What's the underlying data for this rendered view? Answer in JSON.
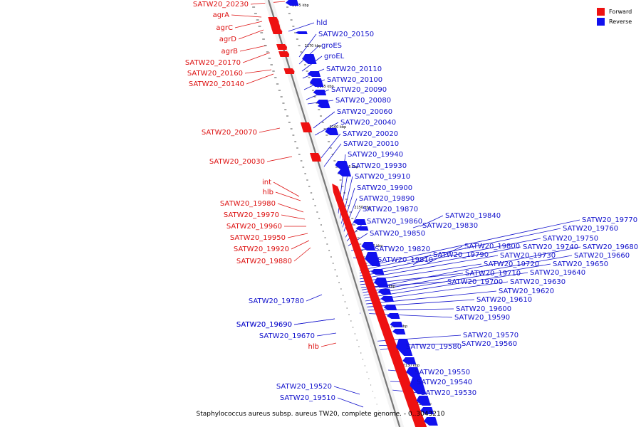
{
  "footer": {
    "title": "Staphylococcus aureus subsp. aureus TW20, complete genome. - 0..3043210"
  },
  "legend": {
    "forward": {
      "label": "Forward",
      "color": "#ee1111"
    },
    "reverse": {
      "label": "Reverse",
      "color": "#1111ee"
    }
  },
  "ticks": [
    "2175 kbp",
    "2170 kbp",
    "2165 kbp",
    "2160 kbp",
    "2155 kbp",
    "2150 kbp",
    "2145 kbp",
    "2140 kbp",
    "2135 kbp",
    "2130 kbp",
    "2125 kbp"
  ],
  "forward_labels": [
    "SATW20_20230",
    "agrA",
    "agrC",
    "agrD",
    "agrB",
    "SATW20_20170",
    "SATW20_20160",
    "SATW20_20140",
    "SATW20_20070",
    "SATW20_20030",
    "int",
    "hlb",
    "SATW20_19980",
    "SATW20_19970",
    "SATW20_19960",
    "SATW20_19950",
    "SATW20_19920",
    "SATW20_19880",
    "hlb"
  ],
  "reverse_labels": [
    "SATW20_19780",
    "SATW20_19690",
    "SATW20_19670",
    "SATW20_19520",
    "SATW20_19510",
    "hld",
    "SATW20_20150",
    "groES",
    "groEL",
    "SATW20_20110",
    "SATW20_20100",
    "SATW20_20090",
    "SATW20_20080",
    "SATW20_20060",
    "SATW20_20040",
    "SATW20_20020",
    "SATW20_20010",
    "SATW20_19940",
    "SATW20_19930",
    "SATW20_19910",
    "SATW20_19900",
    "SATW20_19890",
    "SATW20_19870",
    "SATW20_19860",
    "SATW20_19850",
    "SATW20_19840",
    "SATW20_19830",
    "SATW20_19820",
    "SATW20_19810",
    "SATW20_19800",
    "SATW20_19790",
    "SATW20_19770",
    "SATW20_19760",
    "SATW20_19750",
    "SATW20_19740",
    "SATW20_19730",
    "SATW20_19720",
    "SATW20_19710",
    "SATW20_19700",
    "SATW20_19690",
    "SATW20_19680",
    "SATW20_19660",
    "SATW20_19650",
    "SATW20_19640",
    "SATW20_19630",
    "SATW20_19620",
    "SATW20_19610",
    "SATW20_19600",
    "SATW20_19590",
    "SATW20_19570",
    "SATW20_19560",
    "SATW20_19580",
    "SATW20_19550",
    "SATW20_19540",
    "SATW20_19530"
  ]
}
